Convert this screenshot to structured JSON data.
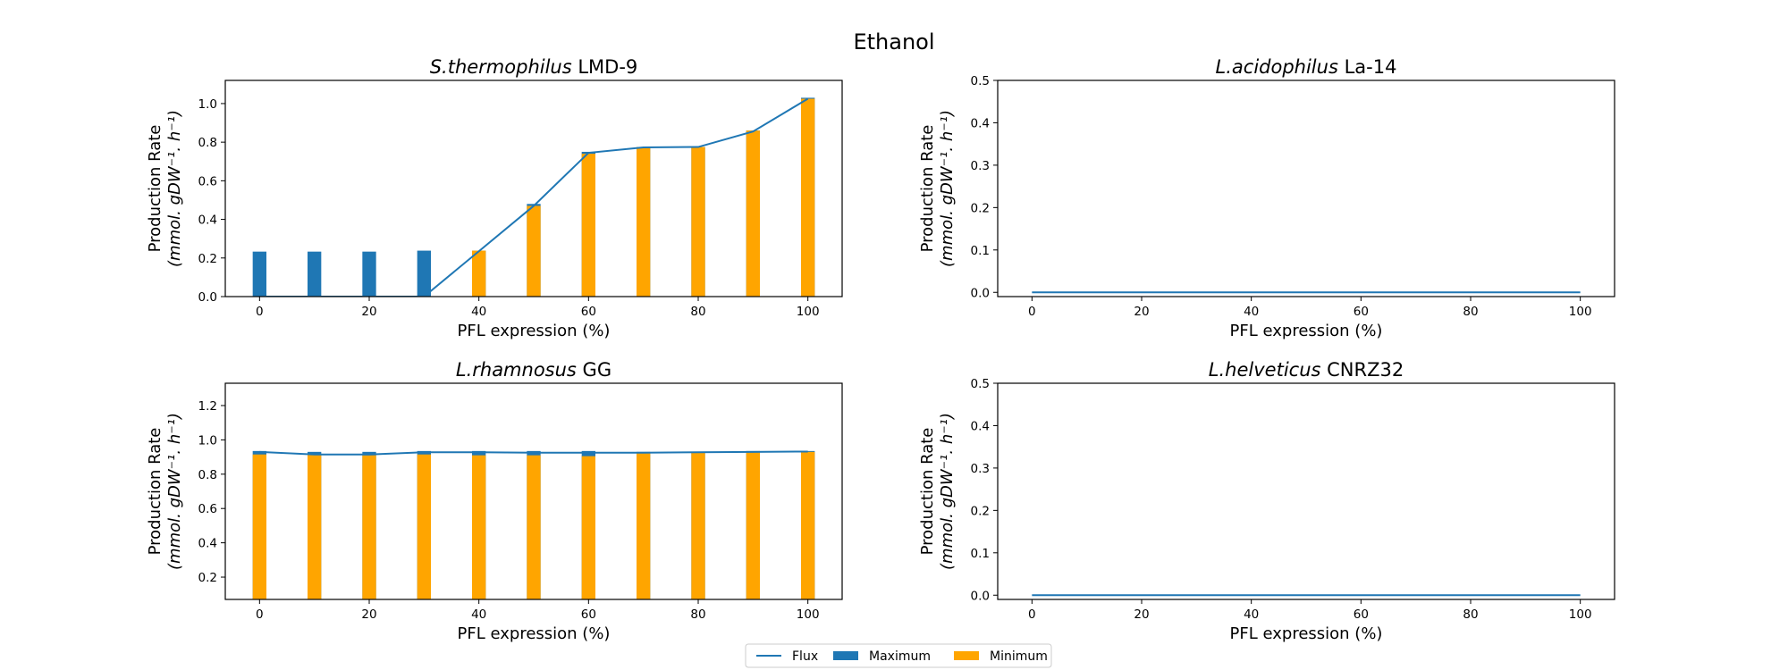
{
  "figure": {
    "title": "Ethanol"
  },
  "legend": {
    "items": [
      {
        "label": "Flux",
        "kind": "line",
        "color": "#1f77b4"
      },
      {
        "label": "Maximum",
        "kind": "bar",
        "color": "#1f77b4"
      },
      {
        "label": "Minimum",
        "kind": "bar",
        "color": "#ffa500"
      }
    ],
    "placement": "bottom-center"
  },
  "colors": {
    "flux": "#1f77b4",
    "maximum": "#1f77b4",
    "minimum": "#ffa500"
  },
  "chart_data": [
    {
      "type": "bar",
      "title_italic": "S.thermophilus",
      "title_rest": " LMD-9",
      "xlabel": "PFL expression (%)",
      "ylabel_line1": "Production Rate",
      "ylabel_line2": "(mmol. gDW⁻¹. h⁻¹)",
      "x": [
        0,
        10,
        20,
        30,
        40,
        50,
        60,
        70,
        80,
        90,
        100
      ],
      "xlim": [
        -6.25,
        106.25
      ],
      "ylim": [
        0,
        1.12
      ],
      "xticks": [
        0,
        20,
        40,
        60,
        80,
        100
      ],
      "yticks": [
        0.0,
        0.2,
        0.4,
        0.6,
        0.8,
        1.0
      ],
      "ytick_labels": [
        "0.0",
        "0.2",
        "0.4",
        "0.6",
        "0.8",
        "1.0"
      ],
      "series": [
        {
          "name": "Maximum",
          "kind": "bar",
          "values": [
            0.233,
            0.233,
            0.233,
            0.238,
            0.238,
            0.48,
            0.75,
            0.775,
            0.775,
            0.86,
            1.03
          ]
        },
        {
          "name": "Minimum",
          "kind": "bar",
          "values": [
            0,
            0,
            0,
            0,
            0.238,
            0.47,
            0.74,
            0.775,
            0.775,
            0.86,
            1.025
          ]
        },
        {
          "name": "Flux",
          "kind": "line",
          "values": [
            0,
            0,
            0,
            0,
            0.235,
            0.47,
            0.745,
            0.773,
            0.775,
            0.855,
            1.025
          ]
        }
      ]
    },
    {
      "type": "line",
      "title_italic": "L.acidophilus",
      "title_rest": " La-14",
      "xlabel": "PFL expression (%)",
      "ylabel_line1": "Production Rate",
      "ylabel_line2": "(mmol. gDW⁻¹. h⁻¹)",
      "x": [
        0,
        10,
        20,
        30,
        40,
        50,
        60,
        70,
        80,
        90,
        100
      ],
      "xlim": [
        -6.25,
        106.25
      ],
      "ylim": [
        -0.01,
        0.5
      ],
      "xticks": [
        0,
        20,
        40,
        60,
        80,
        100
      ],
      "yticks": [
        0.0,
        0.1,
        0.2,
        0.3,
        0.4,
        0.5
      ],
      "ytick_labels": [
        "0.0",
        "0.1",
        "0.2",
        "0.3",
        "0.4",
        "0.5"
      ],
      "series": [
        {
          "name": "Maximum",
          "kind": "bar",
          "values": [
            0,
            0,
            0,
            0,
            0,
            0,
            0,
            0,
            0,
            0,
            0
          ]
        },
        {
          "name": "Minimum",
          "kind": "bar",
          "values": [
            0,
            0,
            0,
            0,
            0,
            0,
            0,
            0,
            0,
            0,
            0
          ]
        },
        {
          "name": "Flux",
          "kind": "line",
          "values": [
            0,
            0,
            0,
            0,
            0,
            0,
            0,
            0,
            0,
            0,
            0
          ]
        }
      ]
    },
    {
      "type": "bar",
      "title_italic": "L.rhamnosus",
      "title_rest": " GG",
      "xlabel": "PFL expression (%)",
      "ylabel_line1": "Production Rate",
      "ylabel_line2": "(mmol. gDW⁻¹. h⁻¹)",
      "x": [
        0,
        10,
        20,
        30,
        40,
        50,
        60,
        70,
        80,
        90,
        100
      ],
      "xlim": [
        -6.25,
        106.25
      ],
      "ylim": [
        0.07,
        1.33
      ],
      "xticks": [
        0,
        20,
        40,
        60,
        80,
        100
      ],
      "yticks": [
        0.2,
        0.4,
        0.6,
        0.8,
        1.0,
        1.2
      ],
      "ytick_labels": [
        "0.2",
        "0.4",
        "0.6",
        "0.8",
        "1.0",
        "1.2"
      ],
      "series": [
        {
          "name": "Maximum",
          "kind": "bar",
          "values": [
            0.935,
            0.93,
            0.93,
            0.935,
            0.935,
            0.935,
            0.935,
            0.93,
            0.93,
            0.935,
            0.935
          ]
        },
        {
          "name": "Minimum",
          "kind": "bar",
          "values": [
            0.915,
            0.915,
            0.91,
            0.915,
            0.91,
            0.91,
            0.905,
            0.925,
            0.925,
            0.93,
            0.93
          ]
        },
        {
          "name": "Flux",
          "kind": "line",
          "values": [
            0.93,
            0.915,
            0.915,
            0.928,
            0.928,
            0.925,
            0.925,
            0.925,
            0.928,
            0.93,
            0.932
          ]
        }
      ]
    },
    {
      "type": "line",
      "title_italic": "L.helveticus",
      "title_rest": " CNRZ32",
      "xlabel": "PFL expression (%)",
      "ylabel_line1": "Production Rate",
      "ylabel_line2": "(mmol. gDW⁻¹. h⁻¹)",
      "x": [
        0,
        10,
        20,
        30,
        40,
        50,
        60,
        70,
        80,
        90,
        100
      ],
      "xlim": [
        -6.25,
        106.25
      ],
      "ylim": [
        -0.01,
        0.5
      ],
      "xticks": [
        0,
        20,
        40,
        60,
        80,
        100
      ],
      "yticks": [
        0.0,
        0.1,
        0.2,
        0.3,
        0.4,
        0.5
      ],
      "ytick_labels": [
        "0.0",
        "0.1",
        "0.2",
        "0.3",
        "0.4",
        "0.5"
      ],
      "series": [
        {
          "name": "Maximum",
          "kind": "bar",
          "values": [
            0,
            0,
            0,
            0,
            0,
            0,
            0,
            0,
            0,
            0,
            0
          ]
        },
        {
          "name": "Minimum",
          "kind": "bar",
          "values": [
            0,
            0,
            0,
            0,
            0,
            0,
            0,
            0,
            0,
            0,
            0
          ]
        },
        {
          "name": "Flux",
          "kind": "line",
          "values": [
            0,
            0,
            0,
            0,
            0,
            0,
            0,
            0,
            0,
            0,
            0
          ]
        }
      ]
    }
  ]
}
